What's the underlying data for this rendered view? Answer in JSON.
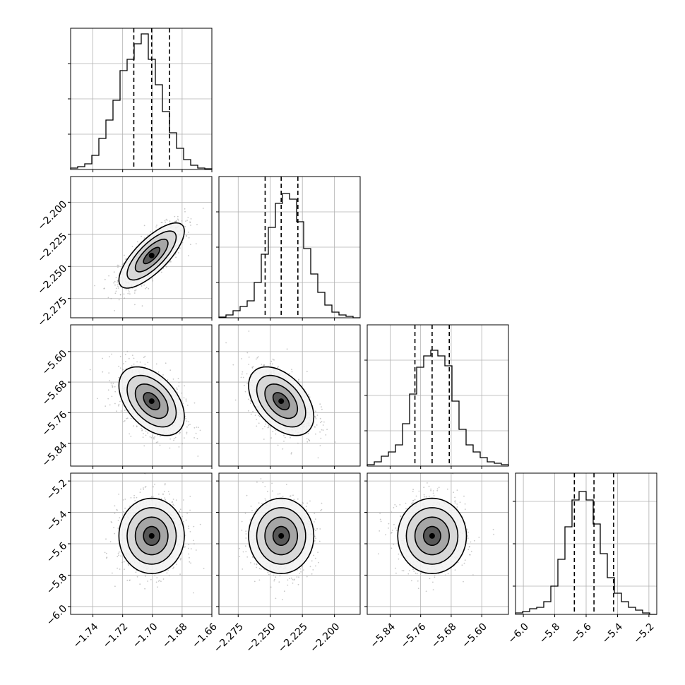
{
  "chart_data": {
    "type": "corner",
    "parameters": [
      {
        "range": [
          -1.755,
          -1.66
        ],
        "ticks": [
          -1.74,
          -1.72,
          -1.7,
          -1.68,
          -1.66
        ],
        "tick_labels": [
          "−1.74",
          "−1.72",
          "−1.70",
          "−1.68",
          "−1.66"
        ],
        "hist_ticks": [
          0.25,
          0.5,
          0.75
        ],
        "hist": {
          "start": -1.755,
          "step": 0.00475,
          "counts": [
            0.01,
            0.02,
            0.04,
            0.1,
            0.22,
            0.35,
            0.49,
            0.7,
            0.78,
            0.89,
            0.96,
            0.78,
            0.6,
            0.41,
            0.26,
            0.15,
            0.07,
            0.03,
            0.01,
            0.005
          ]
        },
        "quantiles": [
          -1.7125,
          -1.7005,
          -1.6885
        ],
        "mean": -1.7005,
        "sd": 0.011
      },
      {
        "range": [
          -2.29,
          -2.18
        ],
        "ticks": [
          -2.275,
          -2.25,
          -2.225,
          -2.2
        ],
        "tick_labels": [
          "−2.275",
          "−2.250",
          "−2.225",
          "−2.200"
        ],
        "hist_ticks": [
          0.25,
          0.5,
          0.75
        ],
        "hist": {
          "start": -2.29,
          "step": 0.0055,
          "counts": [
            0.005,
            0.02,
            0.05,
            0.08,
            0.12,
            0.25,
            0.45,
            0.64,
            0.81,
            0.88,
            0.84,
            0.68,
            0.49,
            0.31,
            0.18,
            0.09,
            0.04,
            0.02,
            0.01,
            0.0
          ]
        },
        "quantiles": [
          -2.254,
          -2.2415,
          -2.2285
        ],
        "mean": -2.2415,
        "sd": 0.0127
      },
      {
        "range": [
          -5.9,
          -5.53
        ],
        "ticks": [
          -5.84,
          -5.76,
          -5.68,
          -5.6
        ],
        "tick_labels": [
          "−5.84",
          "−5.76",
          "−5.68",
          "−5.60"
        ],
        "hist_ticks": [
          0.25,
          0.5,
          0.75
        ],
        "hist": {
          "start": -5.9,
          "step": 0.0185,
          "counts": [
            0.01,
            0.03,
            0.07,
            0.1,
            0.15,
            0.3,
            0.51,
            0.7,
            0.78,
            0.82,
            0.78,
            0.71,
            0.46,
            0.26,
            0.15,
            0.1,
            0.06,
            0.03,
            0.02,
            0.01
          ]
        },
        "quantiles": [
          -5.775,
          -5.73,
          -5.685
        ],
        "mean": -5.73,
        "sd": 0.045
      },
      {
        "range": [
          -6.05,
          -5.15
        ],
        "ticks": [
          -6.0,
          -5.8,
          -5.6,
          -5.4,
          -5.2
        ],
        "tick_labels": [
          "−6.0",
          "−5.8",
          "−5.6",
          "−5.4",
          "−5.2"
        ],
        "hist_ticks": [
          0.2,
          0.5,
          0.8
        ],
        "hist": {
          "start": -6.05,
          "step": 0.045,
          "counts": [
            0.01,
            0.02,
            0.04,
            0.05,
            0.09,
            0.2,
            0.39,
            0.62,
            0.81,
            0.87,
            0.81,
            0.64,
            0.43,
            0.26,
            0.15,
            0.09,
            0.05,
            0.03,
            0.01,
            0.0
          ]
        },
        "quantiles": [
          -5.675,
          -5.55,
          -5.425
        ],
        "mean": -5.55,
        "sd": 0.12
      }
    ],
    "correlations": [
      [
        1.0,
        0.75,
        -0.45,
        0.0
      ],
      [
        0.75,
        1.0,
        -0.45,
        0.0
      ],
      [
        -0.45,
        -0.45,
        1.0,
        0.0
      ],
      [
        0.0,
        0.0,
        0.0,
        1.0
      ]
    ],
    "contour_levels_sigma": [
      0.5,
      1.0,
      1.5,
      2.0
    ],
    "colors": {
      "line": "#000000",
      "grid": "#b0b0b0",
      "points": "#9a9a9a"
    }
  }
}
